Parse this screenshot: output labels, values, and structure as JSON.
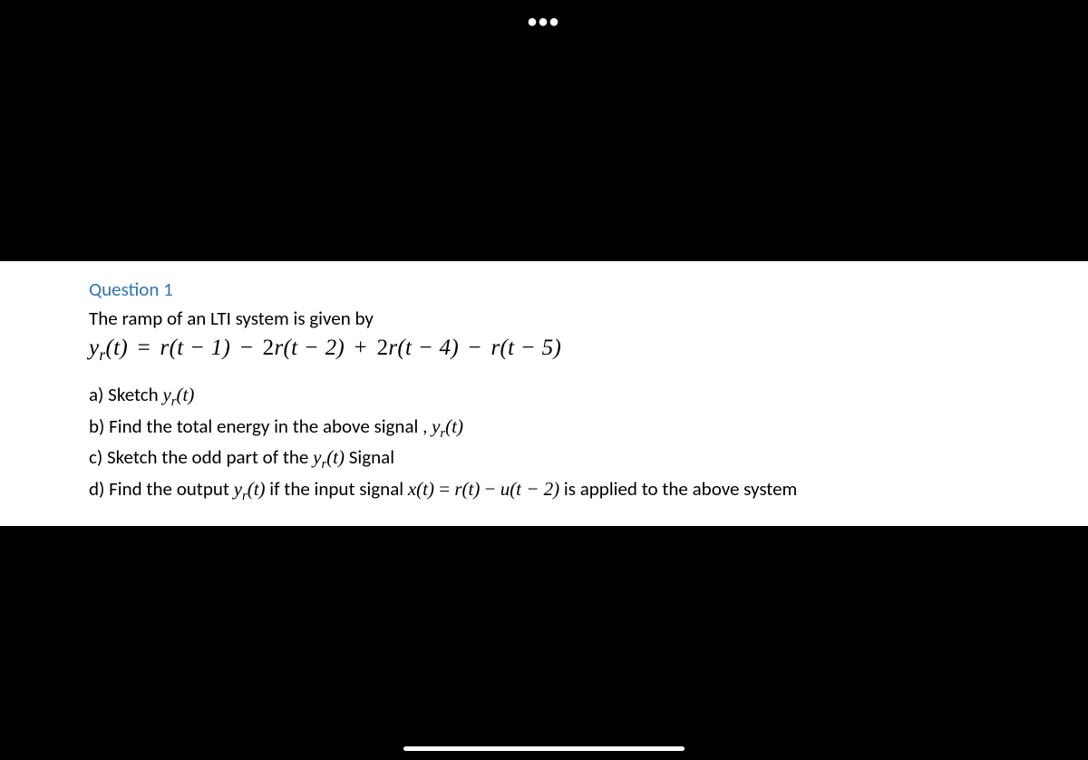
{
  "header": {
    "dots": "•••"
  },
  "content": {
    "question_title": "Question 1",
    "prompt": "The ramp of an LTI system is given by",
    "equation_yr": "y",
    "equation_r_sub": "r",
    "equation_t": "(t)",
    "eq_eq": " = ",
    "eq_term1_fn": "r",
    "eq_term1_arg": "(t − 1)",
    "eq_minus1": " − ",
    "eq_term2_coef": "2",
    "eq_term2_fn": "r",
    "eq_term2_arg": "(t − 2)",
    "eq_plus": " + ",
    "eq_term3_coef": "2",
    "eq_term3_fn": "r",
    "eq_term3_arg": "(t − 4)",
    "eq_minus2": " − ",
    "eq_term4_fn": "r",
    "eq_term4_arg": "(t − 5)",
    "part_a_prefix": "a) Sketch ",
    "part_a_math_y": "y",
    "part_a_math_sub": "r",
    "part_a_math_t": "(t)",
    "part_b_prefix": "b) Find the total energy in the above signal , ",
    "part_b_math_y": "y",
    "part_b_math_sub": "r",
    "part_b_math_t": "(t)",
    "part_c_prefix": "c) Sketch the odd part of the ",
    "part_c_math_y": "y",
    "part_c_math_sub": "r",
    "part_c_math_t": "(t)",
    "part_c_suffix": " Signal",
    "part_d_prefix": "d) Find the output ",
    "part_d_math_y": "y",
    "part_d_math_sub": "r",
    "part_d_math_t": "(t)",
    "part_d_mid1": " if the input signal ",
    "part_d_math_x": "x",
    "part_d_math_xt": "(t)",
    "part_d_eq": " = ",
    "part_d_math_r": "r",
    "part_d_math_rt": "(t)",
    "part_d_minus": " − ",
    "part_d_math_u": "u",
    "part_d_math_ut": "(t − 2)",
    "part_d_suffix": " is applied to the above system"
  }
}
